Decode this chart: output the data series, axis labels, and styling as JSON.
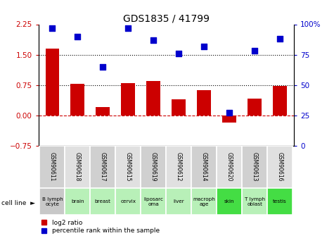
{
  "title": "GDS1835 / 41799",
  "samples": [
    "GSM90611",
    "GSM90618",
    "GSM90617",
    "GSM90615",
    "GSM90619",
    "GSM90612",
    "GSM90614",
    "GSM90620",
    "GSM90613",
    "GSM90616"
  ],
  "cell_lines": [
    "B lymph\nocyte",
    "brain",
    "breast",
    "cervix",
    "liposarc\noma",
    "liver",
    "macroph\nage",
    "skin",
    "T lymph\noblast",
    "testis"
  ],
  "cell_colors": [
    "#c8c8c8",
    "#b8f0b8",
    "#b8f0b8",
    "#b8f0b8",
    "#b8f0b8",
    "#b8f0b8",
    "#b8f0b8",
    "#44dd44",
    "#b8f0b8",
    "#44dd44"
  ],
  "gsm_colors": [
    "#d0d0d0",
    "#e0e0e0",
    "#d0d0d0",
    "#e0e0e0",
    "#d0d0d0",
    "#e0e0e0",
    "#d0d0d0",
    "#e0e0e0",
    "#d0d0d0",
    "#e0e0e0"
  ],
  "log2_ratio": [
    1.65,
    0.78,
    0.2,
    0.8,
    0.85,
    0.4,
    0.63,
    -0.18,
    0.42,
    0.72
  ],
  "pct_rank": [
    97,
    90,
    65,
    97,
    87,
    76,
    82,
    27,
    78,
    88
  ],
  "ylim_left": [
    -0.75,
    2.25
  ],
  "ylim_right": [
    0,
    100
  ],
  "yticks_left": [
    -0.75,
    0,
    0.75,
    1.5,
    2.25
  ],
  "yticks_right": [
    0,
    25,
    50,
    75,
    100
  ],
  "bar_color": "#cc0000",
  "dot_color": "#0000cc",
  "hline1": 0.75,
  "hline2": 1.5
}
